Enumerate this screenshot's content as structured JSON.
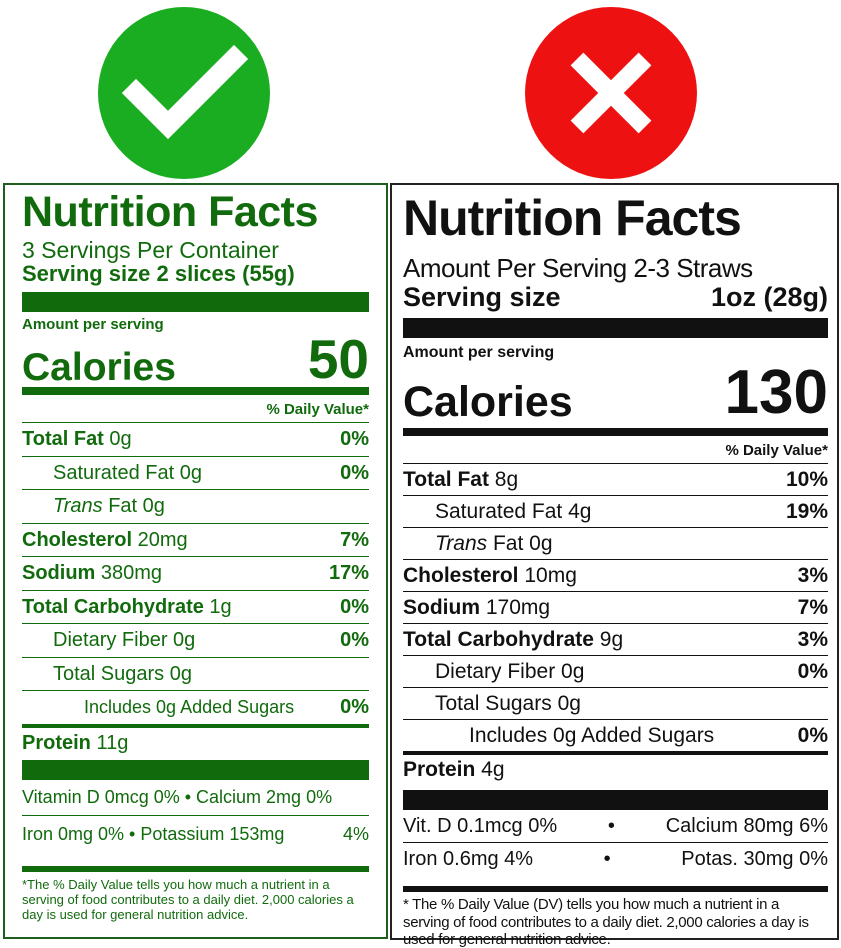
{
  "colors": {
    "good": "#1aad21",
    "bad": "#ee1111",
    "green_label": "#116b0d",
    "black_label": "#111111"
  },
  "icons": {
    "good": "checkmark-icon",
    "bad": "x-mark-icon"
  },
  "green": {
    "title": "Nutrition Facts",
    "servings": "3 Servings Per Container",
    "serving_size": "Serving size 2 slices (55g)",
    "amount_per_serving": "Amount per serving",
    "calories_label": "Calories",
    "calories_value": "50",
    "dv_header": "% Daily Value*",
    "rows": [
      {
        "name": "Total Fat",
        "amount": " 0g",
        "pct": "0%"
      },
      {
        "name": "Saturated Fat",
        "amount": " 0g",
        "pct": "0%"
      },
      {
        "name": "Trans",
        "amount": " Fat 0g",
        "pct": ""
      },
      {
        "name": "Cholesterol",
        "amount": " 20mg",
        "pct": "7%"
      },
      {
        "name": "Sodium",
        "amount": " 380mg",
        "pct": "17%"
      },
      {
        "name": "Total Carbohydrate",
        "amount": " 1g",
        "pct": "0%"
      },
      {
        "name": "Dietary Fiber",
        "amount": " 0g",
        "pct": "0%"
      },
      {
        "name": "Total Sugars",
        "amount": " 0g",
        "pct": ""
      },
      {
        "name": "Includes 0g Added Sugars",
        "amount": "",
        "pct": "0%"
      },
      {
        "name": "Protein",
        "amount": " 11g",
        "pct": ""
      }
    ],
    "vitamins_1": "Vitamin D 0mcg 0% • Calcium 2mg 0%",
    "vitamins_2a": "Iron 0mg 0% • Potassium 153mg",
    "vitamins_2b": "4%",
    "footnote": "*The % Daily Value tells you how much a nutrient in a serving of food contributes to a daily diet. 2,000 calories a day is used for general nutrition advice."
  },
  "black": {
    "title": "Nutrition Facts",
    "servings": "Amount Per Serving 2-3 Straws",
    "serving_size_label": "Serving size",
    "serving_size_value": "1oz (28g)",
    "amount_per_serving": "Amount per serving",
    "calories_label": "Calories",
    "calories_value": "130",
    "dv_header": "% Daily Value*",
    "rows": [
      {
        "name": "Total Fat",
        "amount": " 8g",
        "pct": "10%"
      },
      {
        "name": "Saturated Fat",
        "amount": " 4g",
        "pct": "19%"
      },
      {
        "name": "Trans",
        "amount": " Fat 0g",
        "pct": ""
      },
      {
        "name": "Cholesterol",
        "amount": " 10mg",
        "pct": "3%"
      },
      {
        "name": "Sodium",
        "amount": " 170mg",
        "pct": "7%"
      },
      {
        "name": "Total Carbohydrate",
        "amount": " 9g",
        "pct": "3%"
      },
      {
        "name": "Dietary Fiber",
        "amount": " 0g",
        "pct": "0%"
      },
      {
        "name": "Total Sugars",
        "amount": " 0g",
        "pct": ""
      },
      {
        "name": "Includes 0g Added Sugars",
        "amount": "",
        "pct": "0%"
      },
      {
        "name": "Protein",
        "amount": " 4g",
        "pct": ""
      }
    ],
    "vit_1a": "Vit. D 0.1mcg 0%",
    "vit_1b": "Calcium 80mg 6%",
    "vit_2a": "Iron 0.6mg 4%",
    "vit_2b": "Potas. 30mg 0%",
    "bullet": "•",
    "footnote": "* The % Daily Value (DV) tells you how much a nutrient in a serving of food contributes to a daily diet. 2,000 calories a day is used for general nutrition advice."
  }
}
